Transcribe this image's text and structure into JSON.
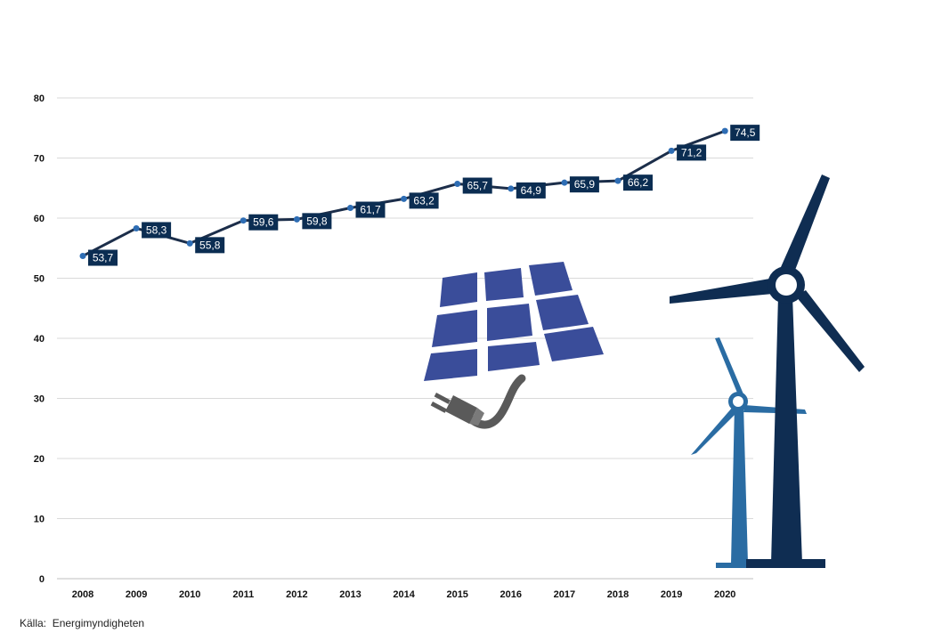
{
  "chart_data": {
    "type": "line",
    "title": "",
    "xlabel": "",
    "ylabel": "",
    "x": [
      "2008",
      "2009",
      "2010",
      "2011",
      "2012",
      "2013",
      "2014",
      "2015",
      "2016",
      "2017",
      "2018",
      "2019",
      "2020"
    ],
    "series": [
      {
        "values": [
          53.7,
          58.3,
          55.8,
          59.6,
          59.8,
          61.7,
          63.2,
          65.7,
          64.9,
          65.9,
          66.2,
          71.2,
          74.5
        ],
        "data_labels": [
          "53,7",
          "58,3",
          "55,8",
          "59,6",
          "59,8",
          "61,7",
          "63,2",
          "65,7",
          "64,9",
          "65,9",
          "66,2",
          "71,2",
          "74,5"
        ]
      }
    ],
    "ylim": [
      0,
      80
    ],
    "yticks": [
      0,
      10,
      20,
      30,
      40,
      50,
      60,
      70,
      80
    ],
    "grid": true,
    "legend": "none"
  },
  "source": {
    "label": "Källa:",
    "value": "Energimyndigheten"
  },
  "icons": [
    "solar-panel-with-plug-icon",
    "wind-turbines-icon"
  ],
  "colors": {
    "line": "#1c2e4a",
    "marker": "#2e6db4",
    "label_bg": "#0b2d52",
    "gridline": "#d9d9d9",
    "turbine_dark": "#0f2d52",
    "turbine_light": "#2a6ca3",
    "panel": "#3a4d9a",
    "plug": "#5a5a5a"
  }
}
